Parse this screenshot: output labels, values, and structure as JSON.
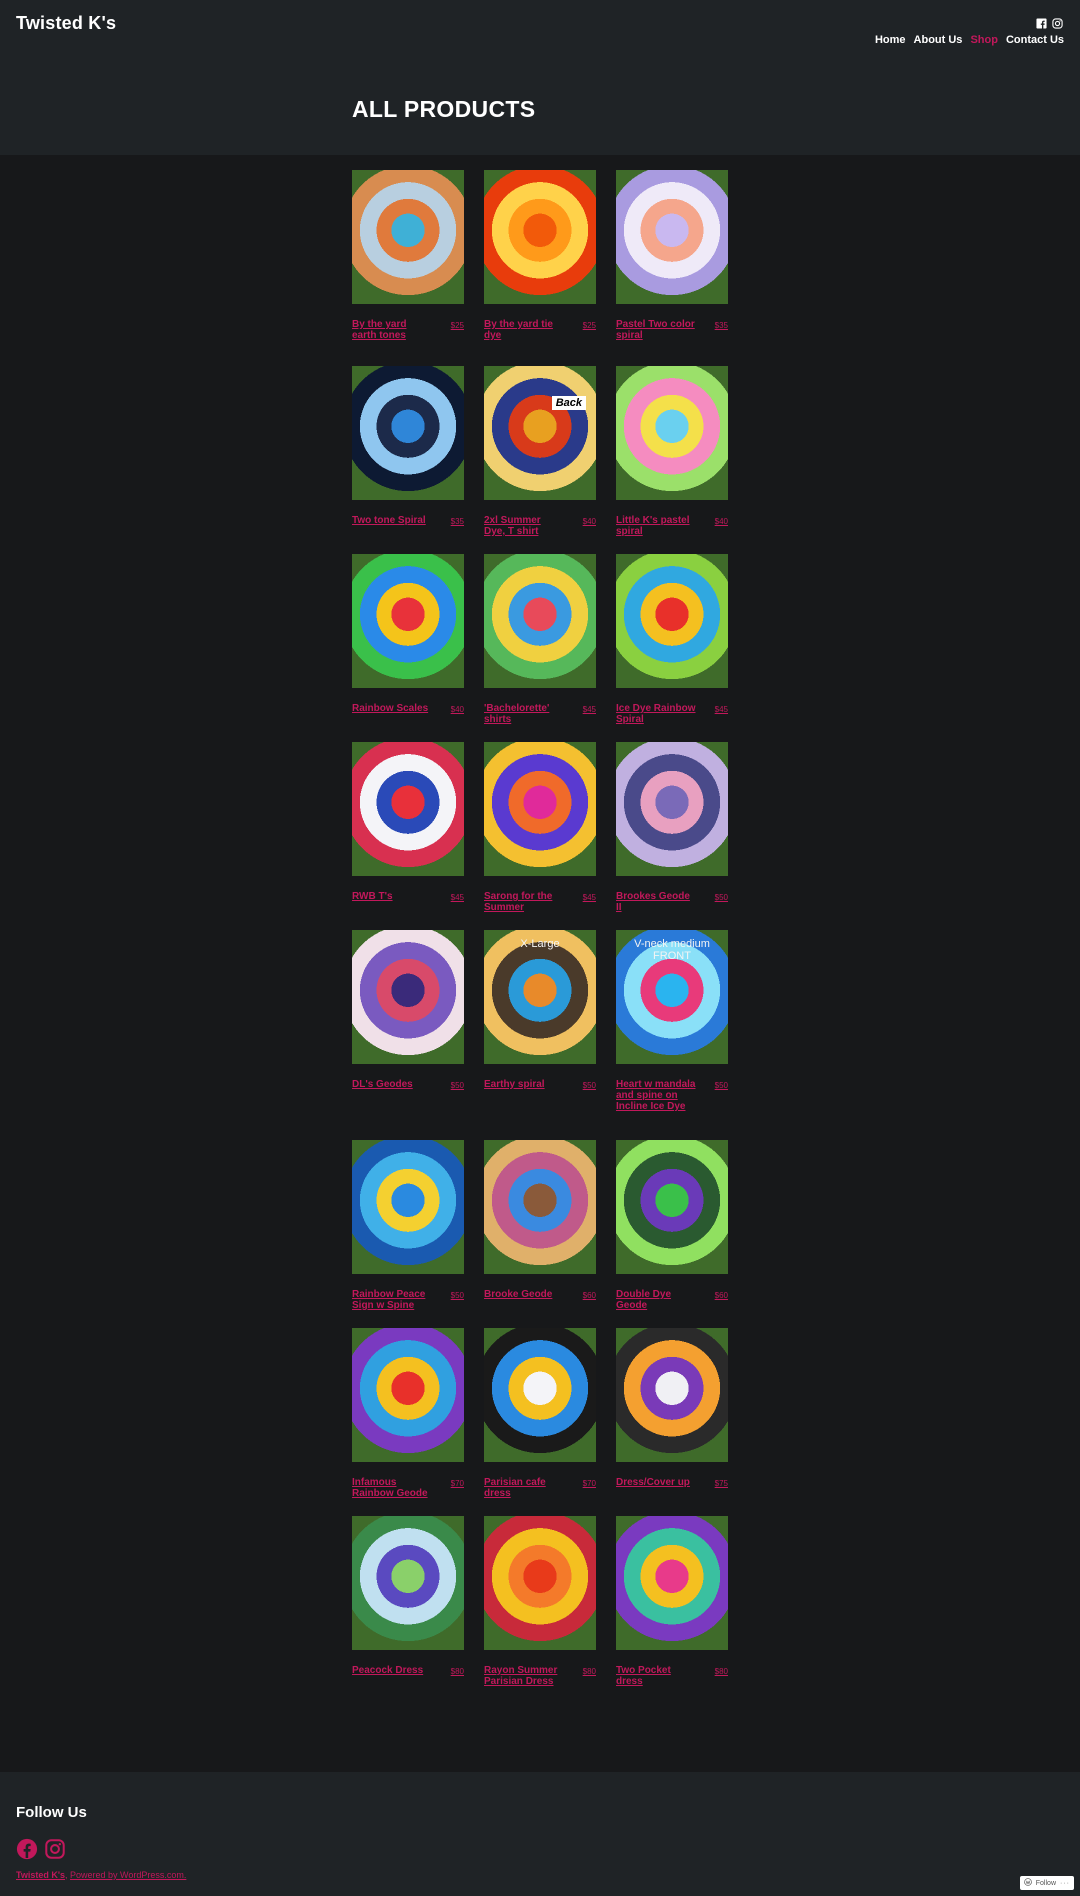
{
  "header": {
    "site_title": "Twisted K's",
    "social_icons": [
      "facebook-icon",
      "instagram-icon"
    ],
    "nav": [
      {
        "label": "Home",
        "active": false
      },
      {
        "label": "About Us",
        "active": false
      },
      {
        "label": "Shop",
        "active": true
      },
      {
        "label": "Contact Us",
        "active": false
      }
    ]
  },
  "page": {
    "title": "ALL PRODUCTS"
  },
  "products": [
    {
      "name": "By the yard earth tones",
      "price": "$25",
      "palette": [
        "#3fb0d6",
        "#e07a3c",
        "#b8cfe0",
        "#d88c50"
      ]
    },
    {
      "name": "By the yard tie dye",
      "price": "$25",
      "palette": [
        "#f25a0a",
        "#ff9a1a",
        "#ffd24a",
        "#e83c0c"
      ]
    },
    {
      "name": "Pastel Two color spiral",
      "price": "$35",
      "palette": [
        "#c9b8f0",
        "#f5a68c",
        "#efeaf8",
        "#a99be0"
      ]
    },
    {
      "name": "Two tone Spiral",
      "price": "$35",
      "palette": [
        "#2f86d8",
        "#1c2a4a",
        "#8fc6ef",
        "#0d1a33"
      ]
    },
    {
      "name": "2xl Summer Dye, T shirt",
      "price": "$40",
      "palette": [
        "#e8a020",
        "#d83a1a",
        "#2a3a8a",
        "#f0d070"
      ],
      "overlay_back": "Back"
    },
    {
      "name": "Little K's pastel spiral",
      "price": "$40",
      "palette": [
        "#6ad0ef",
        "#f4e04a",
        "#f58cc0",
        "#9be06a"
      ]
    },
    {
      "name": "Rainbow Scales",
      "price": "$40",
      "palette": [
        "#e8323a",
        "#f4c41a",
        "#2a8ae8",
        "#3ac04a"
      ]
    },
    {
      "name": "'Bachelorette' shirts",
      "price": "$45",
      "palette": [
        "#e84a5a",
        "#3a9ae0",
        "#f0d040",
        "#56b85a"
      ]
    },
    {
      "name": "Ice Dye Rainbow Spiral",
      "price": "$45",
      "palette": [
        "#e8302a",
        "#f4c020",
        "#30a8e0",
        "#8ad040"
      ]
    },
    {
      "name": "RWB T's",
      "price": "$45",
      "palette": [
        "#e8303a",
        "#2a4ab8",
        "#f4f4f8",
        "#d83050"
      ]
    },
    {
      "name": "Sarong for the Summer",
      "price": "$45",
      "palette": [
        "#e02a9a",
        "#f06a2a",
        "#5a3ad0",
        "#f4c030"
      ]
    },
    {
      "name": "Brookes Geode II",
      "price": "$50",
      "palette": [
        "#7a6ab8",
        "#e8a0c0",
        "#4a4a8a",
        "#c0b0e0"
      ]
    },
    {
      "name": "DL's Geodes",
      "price": "$50",
      "palette": [
        "#3a2a7a",
        "#d84a6a",
        "#7a5ac0",
        "#f0e0e8"
      ]
    },
    {
      "name": "Earthy spiral",
      "price": "$50",
      "palette": [
        "#e88a2a",
        "#2a9ad8",
        "#4a3a2a",
        "#f0c060"
      ],
      "overlay": "X-Large"
    },
    {
      "name": "Heart w mandala and spine on Incline Ice Dye",
      "price": "$50",
      "palette": [
        "#2ab4ef",
        "#e83a7a",
        "#8ae0f8",
        "#2a7ad8"
      ],
      "overlay": "V-neck medium FRONT"
    },
    {
      "name": "Rainbow Peace Sign w Spine",
      "price": "$50",
      "palette": [
        "#2a8ae0",
        "#f4d030",
        "#40b0e8",
        "#1a5ab0"
      ]
    },
    {
      "name": "Brooke Geode",
      "price": "$60",
      "palette": [
        "#8a5a3a",
        "#3a8ae0",
        "#c05a8a",
        "#e0b06a"
      ]
    },
    {
      "name": "Double Dye Geode",
      "price": "$60",
      "palette": [
        "#3ac04a",
        "#6a3ab8",
        "#2a5a30",
        "#90e060"
      ]
    },
    {
      "name": "Infamous Rainbow Geode",
      "price": "$70",
      "palette": [
        "#e8302a",
        "#f4c020",
        "#30a0e0",
        "#7a3ac0"
      ]
    },
    {
      "name": "Parisian cafe dress",
      "price": "$70",
      "palette": [
        "#f4f4f8",
        "#f4c020",
        "#2a8ae0",
        "#1a1a1a"
      ]
    },
    {
      "name": "Dress/Cover up",
      "price": "$75",
      "palette": [
        "#f0f0f4",
        "#7a3ab8",
        "#f4a030",
        "#2a2a2a"
      ]
    },
    {
      "name": "Peacock Dress",
      "price": "$80",
      "palette": [
        "#8ad06a",
        "#5a4ac0",
        "#c0e0f0",
        "#3a8a4a"
      ]
    },
    {
      "name": "Rayon Summer Parisian Dress",
      "price": "$80",
      "palette": [
        "#e83a1a",
        "#f47a2a",
        "#f4c020",
        "#c82a3a"
      ]
    },
    {
      "name": "Two Pocket dress",
      "price": "$80",
      "palette": [
        "#e83a8a",
        "#f4c020",
        "#3ac0a0",
        "#7a3ac0"
      ]
    }
  ],
  "footer": {
    "title": "Follow Us",
    "social_icons": [
      "facebook-icon",
      "instagram-icon"
    ],
    "credit_site": "Twisted K's",
    "credit_sep": ", ",
    "credit_powered": "Powered by WordPress.com.",
    "follow_label": "Follow"
  },
  "colors": {
    "accent": "#c2185b",
    "background": "#17181a",
    "header_bg": "#1f2326",
    "text": "#ffffff"
  }
}
